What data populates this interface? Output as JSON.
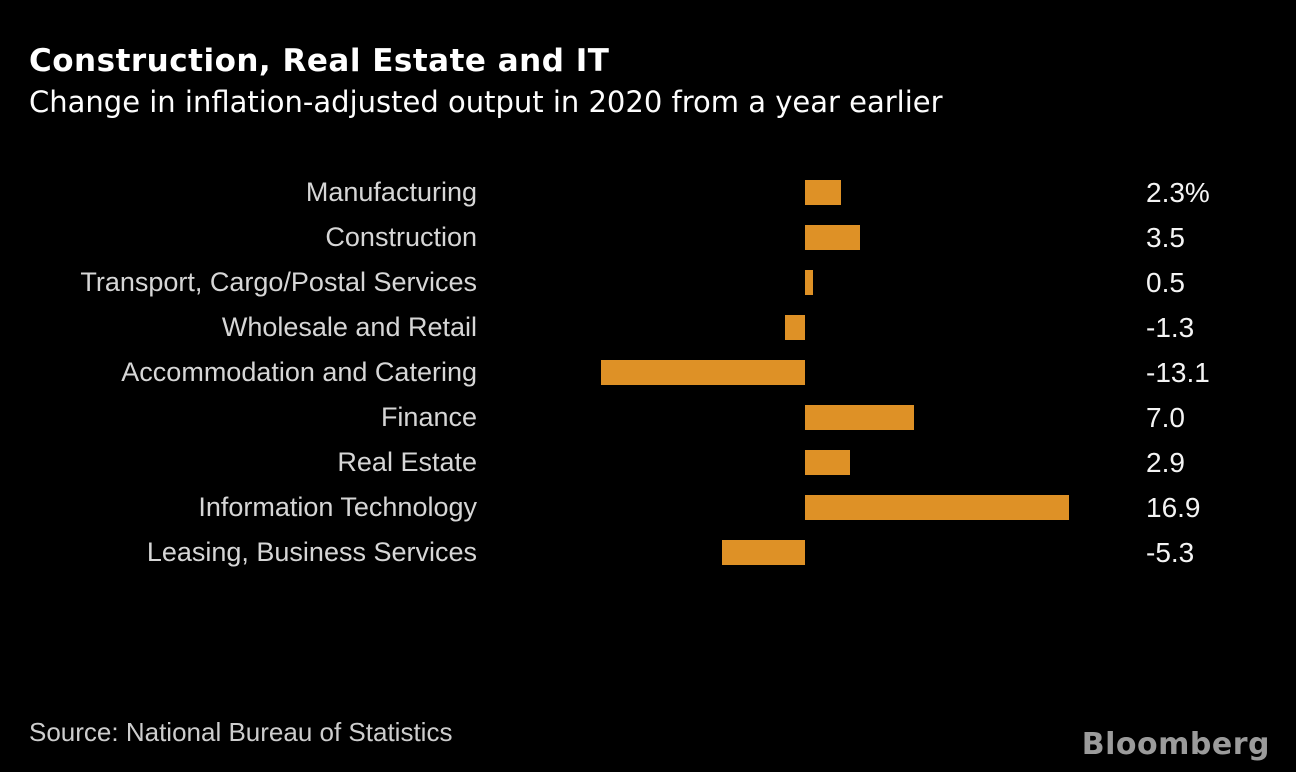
{
  "header": {
    "title": "Construction, Real Estate and IT",
    "subtitle": "Change in inflation-adjusted output in 2020 from a year earlier"
  },
  "chart_data": {
    "type": "bar",
    "orientation": "horizontal",
    "title": "Construction, Real Estate and IT",
    "subtitle": "Change in inflation-adjusted output in 2020 from a year earlier",
    "unit": "%",
    "baseline": 0,
    "grid": false,
    "axes_visible": false,
    "legend": null,
    "bar_color": "#de9126",
    "background_color": "#000000",
    "categories": [
      "Manufacturing",
      "Construction",
      "Transport, Cargo/Postal Services",
      "Wholesale and Retail",
      "Accommodation and Catering",
      "Finance",
      "Real Estate",
      "Information Technology",
      "Leasing, Business Services"
    ],
    "values": [
      2.3,
      3.5,
      0.5,
      -1.3,
      -13.1,
      7.0,
      2.9,
      16.9,
      -5.3
    ],
    "value_labels": [
      "2.3%",
      "3.5",
      "0.5",
      "-1.3",
      "-13.1",
      "7.0",
      "2.9",
      "16.9",
      "-5.3"
    ]
  },
  "footer": {
    "source": "Source: National Bureau of Statistics",
    "brand": "Bloomberg"
  },
  "colors": {
    "accent_orange": "#de9126",
    "background": "#000000",
    "title_text": "#ffffff",
    "label_text": "#d6d6d6",
    "value_text": "#f4f4f4",
    "source_text": "#cdcdcd",
    "brand_text": "#9b9b9b"
  }
}
